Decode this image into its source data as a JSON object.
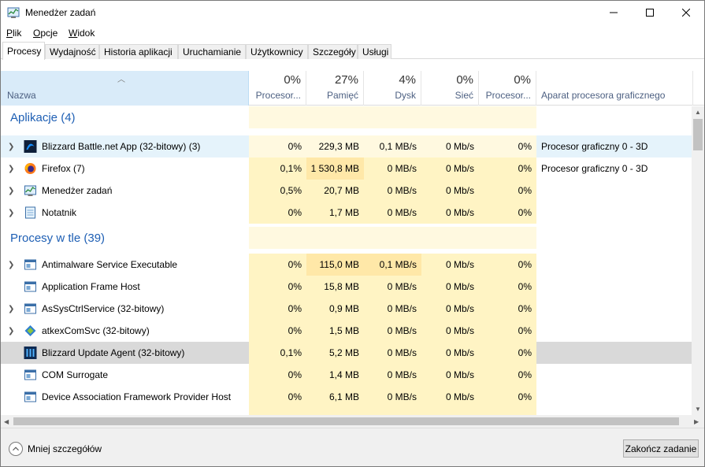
{
  "window": {
    "title": "Menedżer zadań",
    "icon": "task-manager-icon"
  },
  "menu": [
    {
      "key": "P",
      "rest": "lik"
    },
    {
      "key": "O",
      "rest": "pcje"
    },
    {
      "key": "W",
      "rest": "idok"
    }
  ],
  "tabs": [
    {
      "label": "Procesy",
      "active": true
    },
    {
      "label": "Wydajność"
    },
    {
      "label": "Historia aplikacji"
    },
    {
      "label": "Uruchamianie"
    },
    {
      "label": "Użytkownicy"
    },
    {
      "label": "Szczegóły"
    },
    {
      "label": "Usługi"
    }
  ],
  "columns": {
    "name": {
      "label": "Nazwa"
    },
    "cpu": {
      "pct": "0%",
      "label": "Procesor..."
    },
    "mem": {
      "pct": "27%",
      "label": "Pamięć"
    },
    "disk": {
      "pct": "4%",
      "label": "Dysk"
    },
    "net": {
      "pct": "0%",
      "label": "Sieć"
    },
    "gpu": {
      "pct": "0%",
      "label": "Procesor..."
    },
    "gpu_engine": {
      "label": "Aparat procesora graficznego"
    }
  },
  "groups": {
    "apps": "Aplikacje (4)",
    "background": "Procesy w tle (39)"
  },
  "apps": [
    {
      "name": "Blizzard Battle.net App (32-bitowy) (3)",
      "icon": "battlenet-icon",
      "cpu": "0%",
      "mem": "229,3 MB",
      "disk": "0,1 MB/s",
      "net": "0 Mb/s",
      "gpu": "0%",
      "engine": "Procesor graficzny 0 - 3D"
    },
    {
      "name": "Firefox (7)",
      "icon": "firefox-icon",
      "cpu": "0,1%",
      "mem": "1 530,8 MB",
      "disk": "0 MB/s",
      "net": "0 Mb/s",
      "gpu": "0%",
      "engine": "Procesor graficzny 0 - 3D"
    },
    {
      "name": "Menedżer zadań",
      "icon": "task-manager-icon",
      "cpu": "0,5%",
      "mem": "20,7 MB",
      "disk": "0 MB/s",
      "net": "0 Mb/s",
      "gpu": "0%",
      "engine": ""
    },
    {
      "name": "Notatnik",
      "icon": "notepad-icon",
      "cpu": "0%",
      "mem": "1,7 MB",
      "disk": "0 MB/s",
      "net": "0 Mb/s",
      "gpu": "0%",
      "engine": ""
    }
  ],
  "background": [
    {
      "name": "Antimalware Service Executable",
      "icon": "service-window-icon",
      "cpu": "0%",
      "mem": "115,0 MB",
      "disk": "0,1 MB/s",
      "net": "0 Mb/s",
      "gpu": "0%"
    },
    {
      "name": "Application Frame Host",
      "icon": "service-window-icon",
      "cpu": "0%",
      "mem": "15,8 MB",
      "disk": "0 MB/s",
      "net": "0 Mb/s",
      "gpu": "0%"
    },
    {
      "name": "AsSysCtrlService (32-bitowy)",
      "icon": "service-window-icon",
      "cpu": "0%",
      "mem": "0,9 MB",
      "disk": "0 MB/s",
      "net": "0 Mb/s",
      "gpu": "0%"
    },
    {
      "name": "atkexComSvc (32-bitowy)",
      "icon": "atkex-icon",
      "cpu": "0%",
      "mem": "1,5 MB",
      "disk": "0 MB/s",
      "net": "0 Mb/s",
      "gpu": "0%"
    },
    {
      "name": "Blizzard Update Agent (32-bitowy)",
      "icon": "blizzard-update-icon",
      "cpu": "0,1%",
      "mem": "5,2 MB",
      "disk": "0 MB/s",
      "net": "0 Mb/s",
      "gpu": "0%"
    },
    {
      "name": "COM Surrogate",
      "icon": "service-window-icon",
      "cpu": "0%",
      "mem": "1,4 MB",
      "disk": "0 MB/s",
      "net": "0 Mb/s",
      "gpu": "0%"
    },
    {
      "name": "Device Association Framework Provider Host",
      "icon": "service-window-icon",
      "cpu": "0%",
      "mem": "6,1 MB",
      "disk": "0 MB/s",
      "net": "0 Mb/s",
      "gpu": "0%"
    }
  ],
  "footer": {
    "fewer_details": "Mniej szczegółów",
    "end_task": "Zakończ zadanie"
  },
  "colors": {
    "header_selected": "#d9ebf9",
    "heat_low": "#fff4c4",
    "heat_mid": "#ffe8a8",
    "group_text": "#1e5fb4",
    "row_selected": "#e5f3fb",
    "row_hover": "#d9d9d9"
  }
}
